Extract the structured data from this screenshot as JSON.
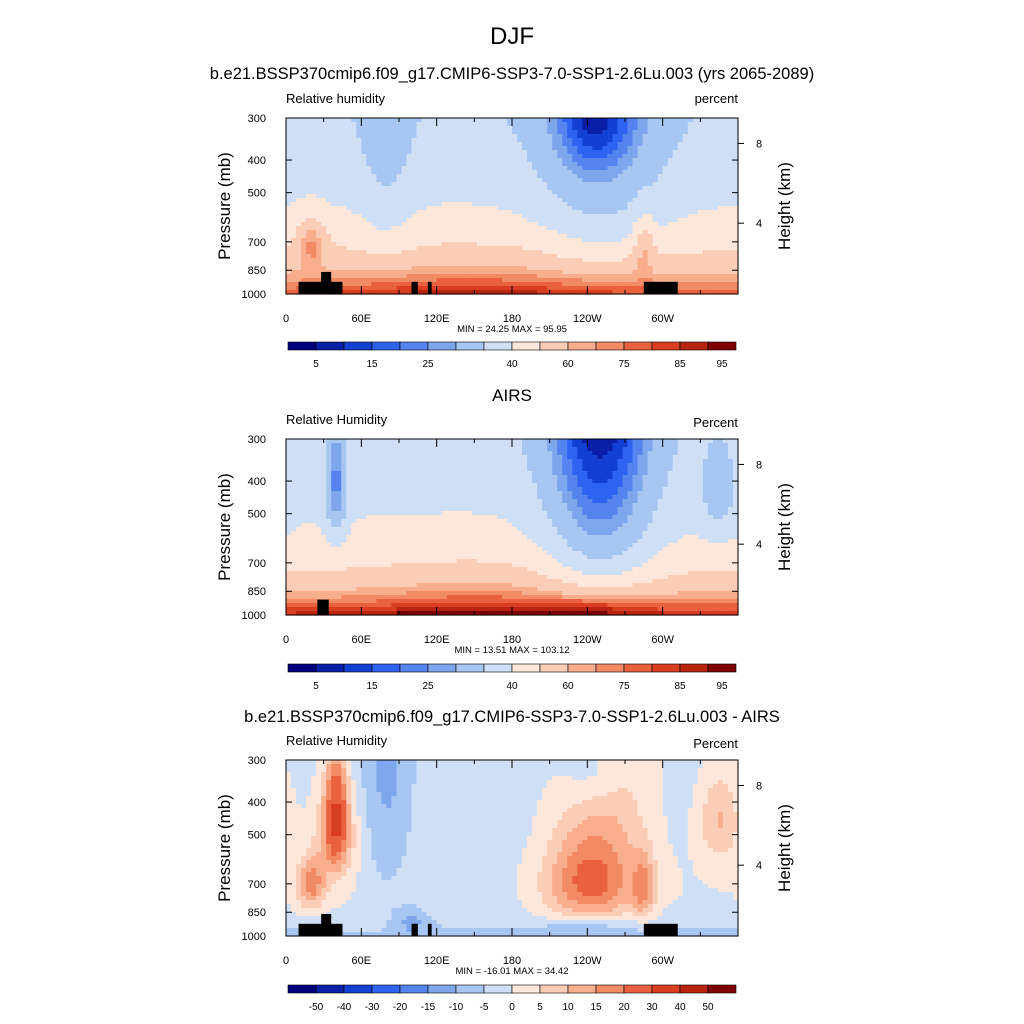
{
  "figure": {
    "title": "DJF",
    "subtitle": "b.e21.BSSP370cmip6.f09_g17.CMIP6-SSP3-7.0-SSP1-2.6Lu.003 (yrs 2065-2089)"
  },
  "axes_common": {
    "ylabel": "Pressure (mb)",
    "right_label": "Height (km)",
    "pressure_ticks": [
      "300",
      "400",
      "500",
      "700",
      "850",
      "1000"
    ],
    "height_ticks": [
      "8",
      "4"
    ],
    "lon_ticks": [
      "0",
      "60E",
      "120E",
      "180",
      "120W",
      "60W"
    ]
  },
  "colors": {
    "abs_scale": [
      "#00007f",
      "#0a1fa8",
      "#1140d2",
      "#2e62f0",
      "#5584ee",
      "#7ea6ec",
      "#a8c6f2",
      "#cfe0f6",
      "#fde7da",
      "#fbcdb6",
      "#f8ad8c",
      "#f28a64",
      "#e9613f",
      "#d93e20",
      "#b8240f",
      "#7f0000"
    ],
    "diff_scale": [
      "#00007f",
      "#0a1fa8",
      "#1140d2",
      "#2e62f0",
      "#5584ee",
      "#7ea6ec",
      "#a8c6f2",
      "#cfe0f6",
      "#fde7da",
      "#fbcdb6",
      "#f8ad8c",
      "#f28a64",
      "#e9613f",
      "#d93e20",
      "#b8240f",
      "#7f0000"
    ]
  },
  "chart_data": [
    {
      "type": "heatmap",
      "title": "",
      "left_string": "Relative humidity",
      "right_string": "percent",
      "stats": "MIN =  24.25  MAX =  95.95",
      "colorbar_labels": [
        "5",
        "15",
        "25",
        "40",
        "60",
        "75",
        "85",
        "95"
      ],
      "levels": [
        5,
        10,
        15,
        20,
        25,
        30,
        40,
        50,
        60,
        70,
        75,
        80,
        85,
        90,
        95
      ],
      "xlim": [
        0,
        360
      ],
      "ylim": [
        1000,
        300
      ],
      "field": "model"
    },
    {
      "type": "heatmap",
      "title": "AIRS",
      "left_string": "Relative Humidity",
      "right_string": "Percent",
      "stats": "MIN =  13.51  MAX = 103.12",
      "colorbar_labels": [
        "5",
        "15",
        "25",
        "40",
        "60",
        "75",
        "85",
        "95"
      ],
      "levels": [
        5,
        10,
        15,
        20,
        25,
        30,
        40,
        50,
        60,
        70,
        75,
        80,
        85,
        90,
        95
      ],
      "xlim": [
        0,
        360
      ],
      "ylim": [
        1000,
        300
      ],
      "field": "airs"
    },
    {
      "type": "heatmap",
      "title": "b.e21.BSSP370cmip6.f09_g17.CMIP6-SSP3-7.0-SSP1-2.6Lu.003 - AIRS",
      "left_string": "Relative Humidity",
      "right_string": "Percent",
      "stats": "MIN = -16.01  MAX =  34.42",
      "colorbar_labels": [
        "-50",
        "-40",
        "-30",
        "-20",
        "-15",
        "-10",
        "-5",
        "0",
        "5",
        "10",
        "15",
        "20",
        "30",
        "40",
        "50"
      ],
      "levels": [
        -50,
        -40,
        -30,
        -20,
        -15,
        -10,
        -5,
        0,
        5,
        10,
        15,
        20,
        30,
        40,
        50
      ],
      "xlim": [
        0,
        360
      ],
      "ylim": [
        1000,
        300
      ],
      "field": "diff"
    }
  ]
}
